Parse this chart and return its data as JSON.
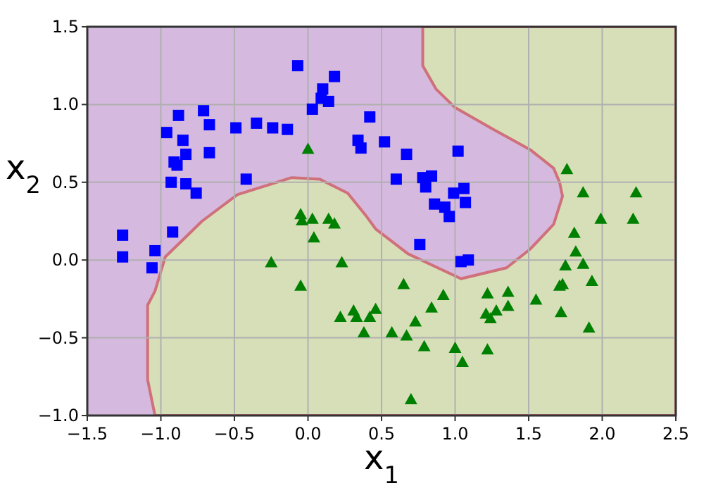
{
  "chart_data": {
    "type": "scatter",
    "xlabel": "x$_{1}$",
    "ylabel": "x$_{2}$",
    "xlim": [
      -1.5,
      2.5
    ],
    "ylim": [
      -1.0,
      1.5
    ],
    "xticks": [
      {
        "value": -1.5,
        "label": "−1.5"
      },
      {
        "value": -1.0,
        "label": "−1.0"
      },
      {
        "value": -0.5,
        "label": "−0.5"
      },
      {
        "value": 0.0,
        "label": "0.0"
      },
      {
        "value": 0.5,
        "label": "0.5"
      },
      {
        "value": 1.0,
        "label": "1.0"
      },
      {
        "value": 1.5,
        "label": "1.5"
      },
      {
        "value": 2.0,
        "label": "2.0"
      },
      {
        "value": 2.5,
        "label": "2.5"
      }
    ],
    "yticks": [
      {
        "value": -1.0,
        "label": "−1.0"
      },
      {
        "value": -0.5,
        "label": "−0.5"
      },
      {
        "value": 0.0,
        "label": "0.0"
      },
      {
        "value": 0.5,
        "label": "0.5"
      },
      {
        "value": 1.0,
        "label": "1.0"
      },
      {
        "value": 1.5,
        "label": "1.5"
      }
    ],
    "grid": true,
    "series": [
      {
        "color": "#0000ff",
        "marker": "square",
        "x": [
          -0.07,
          0.18,
          0.1,
          0.09,
          0.14,
          0.03,
          -0.88,
          -0.71,
          -0.67,
          -0.96,
          -0.85,
          -0.83,
          -0.91,
          -0.89,
          -0.67,
          -0.49,
          -0.35,
          -0.24,
          -0.14,
          -0.93,
          -0.83,
          -0.76,
          -0.42,
          0.42,
          0.34,
          0.36,
          0.52,
          0.67,
          0.6,
          0.78,
          0.84,
          0.8,
          1.02,
          0.86,
          0.93,
          0.99,
          1.06,
          1.07,
          1.04,
          1.09,
          0.76,
          0.96,
          -1.26,
          -1.26,
          -1.04,
          -1.06,
          -0.92
        ],
        "values": [
          1.25,
          1.18,
          1.1,
          1.04,
          1.02,
          0.97,
          0.93,
          0.96,
          0.87,
          0.82,
          0.77,
          0.68,
          0.63,
          0.61,
          0.69,
          0.85,
          0.88,
          0.85,
          0.84,
          0.5,
          0.49,
          0.43,
          0.52,
          0.92,
          0.77,
          0.72,
          0.76,
          0.68,
          0.52,
          0.53,
          0.54,
          0.47,
          0.7,
          0.36,
          0.34,
          0.43,
          0.46,
          0.37,
          -0.01,
          0.0,
          0.1,
          0.28,
          0.16,
          0.02,
          0.06,
          -0.05,
          0.18
        ]
      },
      {
        "type": "area",
        "color": "#d0707a",
        "x": [
          -1.04,
          -1.09,
          -1.09,
          -1.04,
          -0.97,
          -0.72,
          -0.48,
          -0.11,
          0.08,
          0.27,
          0.39,
          0.46,
          0.68,
          1.04,
          1.35,
          1.51,
          1.67,
          1.73,
          1.71,
          1.67,
          1.51,
          1.26,
          1.0,
          0.87,
          0.78,
          0.78,
          2.5,
          2.5
        ],
        "values": [
          -1.0,
          -0.77,
          -0.29,
          -0.2,
          0.02,
          0.25,
          0.42,
          0.53,
          0.52,
          0.43,
          0.29,
          0.2,
          0.04,
          -0.12,
          -0.05,
          0.07,
          0.23,
          0.41,
          0.5,
          0.59,
          0.71,
          0.84,
          0.98,
          1.1,
          1.25,
          1.5,
          1.5,
          -1.0
        ]
      },
      {
        "color": "#008000",
        "marker": "triangle",
        "x": [
          0.0,
          -0.05,
          0.03,
          -0.04,
          0.14,
          0.18,
          0.04,
          -0.25,
          -0.05,
          0.23,
          0.22,
          0.31,
          0.33,
          0.46,
          0.42,
          0.38,
          0.57,
          0.65,
          0.67,
          0.73,
          0.79,
          0.84,
          0.7,
          1.0,
          1.05,
          1.22,
          1.21,
          1.24,
          1.28,
          1.22,
          1.36,
          1.36,
          1.55,
          1.71,
          1.73,
          1.72,
          1.91,
          1.93,
          1.75,
          1.87,
          1.82,
          1.81,
          1.99,
          2.21,
          1.76,
          1.87,
          2.23,
          0.92
        ],
        "values": [
          0.71,
          0.29,
          0.26,
          0.25,
          0.26,
          0.23,
          0.14,
          -0.02,
          -0.17,
          -0.02,
          -0.37,
          -0.33,
          -0.37,
          -0.32,
          -0.37,
          -0.47,
          -0.47,
          -0.16,
          -0.49,
          -0.4,
          -0.56,
          -0.31,
          -0.9,
          -0.57,
          -0.66,
          -0.58,
          -0.35,
          -0.38,
          -0.33,
          -0.22,
          -0.21,
          -0.3,
          -0.26,
          -0.17,
          -0.16,
          -0.34,
          -0.44,
          -0.14,
          -0.04,
          -0.03,
          0.05,
          0.17,
          0.26,
          0.26,
          0.58,
          0.43,
          0.43,
          -0.23
        ]
      }
    ]
  }
}
